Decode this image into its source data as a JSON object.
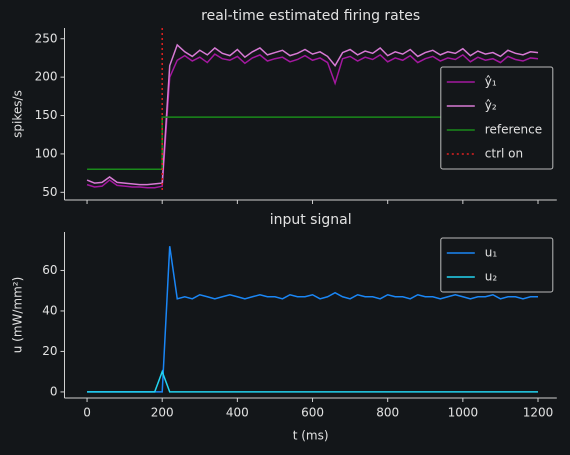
{
  "chart_data": [
    {
      "type": "line",
      "title": "real-time estimated firing rates",
      "ylabel": "spikes/s",
      "x": [
        0,
        20,
        40,
        60,
        80,
        100,
        120,
        140,
        160,
        180,
        200,
        220,
        240,
        260,
        280,
        300,
        320,
        340,
        360,
        380,
        400,
        420,
        440,
        460,
        480,
        500,
        520,
        540,
        560,
        580,
        600,
        620,
        640,
        660,
        680,
        700,
        720,
        740,
        760,
        780,
        800,
        820,
        840,
        860,
        880,
        900,
        920,
        940,
        960,
        980,
        1000,
        1020,
        1040,
        1060,
        1080,
        1100,
        1120,
        1140,
        1160,
        1180,
        1200
      ],
      "series": [
        {
          "name": "ŷ₁",
          "color": "#a3189f",
          "values": [
            60,
            57,
            58,
            66,
            59,
            58,
            57,
            57,
            56,
            56,
            58,
            200,
            222,
            228,
            221,
            226,
            219,
            230,
            224,
            222,
            227,
            218,
            225,
            229,
            221,
            224,
            226,
            220,
            223,
            228,
            222,
            225,
            219,
            192,
            224,
            227,
            221,
            226,
            223,
            229,
            220,
            225,
            222,
            228,
            219,
            224,
            227,
            221,
            225,
            223,
            229,
            220,
            226,
            222,
            224,
            219,
            227,
            223,
            221,
            225,
            224
          ]
        },
        {
          "name": "ŷ₂",
          "color": "#d77ad4",
          "values": [
            66,
            62,
            63,
            70,
            63,
            62,
            61,
            60,
            60,
            61,
            62,
            215,
            242,
            233,
            227,
            235,
            229,
            238,
            231,
            228,
            236,
            226,
            233,
            238,
            229,
            232,
            235,
            228,
            231,
            236,
            230,
            233,
            227,
            215,
            232,
            236,
            229,
            234,
            231,
            238,
            228,
            233,
            230,
            236,
            227,
            232,
            235,
            229,
            233,
            231,
            237,
            228,
            234,
            230,
            232,
            227,
            235,
            231,
            229,
            233,
            232
          ]
        },
        {
          "name": "reference",
          "color": "#1a8a1a",
          "x": [
            0,
            200,
            200,
            1200
          ],
          "values": [
            80,
            80,
            148,
            148
          ]
        }
      ],
      "vlines": [
        {
          "name": "ctrl on",
          "color": "#e02020",
          "x": 200
        }
      ],
      "xlim": [
        -60,
        1250
      ],
      "xticks": [
        0,
        200,
        400,
        600,
        800,
        1000,
        1200
      ],
      "xtick_labels": false,
      "ylim": [
        40,
        264
      ],
      "yticks": [
        50,
        100,
        150,
        200,
        250
      ],
      "legend": "center right"
    },
    {
      "type": "line",
      "title": "input signal",
      "ylabel": "u (mW/mm²)",
      "xlabel": "t (ms)",
      "x": [
        0,
        20,
        40,
        60,
        80,
        100,
        120,
        140,
        160,
        180,
        200,
        220,
        240,
        260,
        280,
        300,
        320,
        340,
        360,
        380,
        400,
        420,
        440,
        460,
        480,
        500,
        520,
        540,
        560,
        580,
        600,
        620,
        640,
        660,
        680,
        700,
        720,
        740,
        760,
        780,
        800,
        820,
        840,
        860,
        880,
        900,
        920,
        940,
        960,
        980,
        1000,
        1020,
        1040,
        1060,
        1080,
        1100,
        1120,
        1140,
        1160,
        1180,
        1200
      ],
      "series": [
        {
          "name": "u₁",
          "color": "#1a86f5",
          "values": [
            0,
            0,
            0,
            0,
            0,
            0,
            0,
            0,
            0,
            0,
            0,
            72,
            46,
            47,
            46,
            48,
            47,
            46,
            47,
            48,
            47,
            46,
            47,
            48,
            47,
            47,
            46,
            48,
            47,
            47,
            48,
            46,
            47,
            49,
            47,
            46,
            48,
            47,
            47,
            46,
            48,
            47,
            47,
            46,
            48,
            47,
            47,
            46,
            47,
            48,
            47,
            46,
            47,
            47,
            48,
            46,
            47,
            47,
            46,
            47,
            47
          ]
        },
        {
          "name": "u₂",
          "color": "#22d4f0",
          "values": [
            0,
            0,
            0,
            0,
            0,
            0,
            0,
            0,
            0,
            0,
            10,
            0,
            0,
            0,
            0,
            0,
            0,
            0,
            0,
            0,
            0,
            0,
            0,
            0,
            0,
            0,
            0,
            0,
            0,
            0,
            0,
            0,
            0,
            0,
            0,
            0,
            0,
            0,
            0,
            0,
            0,
            0,
            0,
            0,
            0,
            0,
            0,
            0,
            0,
            0,
            0,
            0,
            0,
            0,
            0,
            0,
            0,
            0,
            0,
            0,
            0
          ]
        }
      ],
      "xlim": [
        -60,
        1250
      ],
      "xticks": [
        0,
        200,
        400,
        600,
        800,
        1000,
        1200
      ],
      "xtick_labels": true,
      "ylim": [
        -3,
        79
      ],
      "yticks": [
        0,
        20,
        40,
        60
      ],
      "legend": "upper right"
    }
  ]
}
